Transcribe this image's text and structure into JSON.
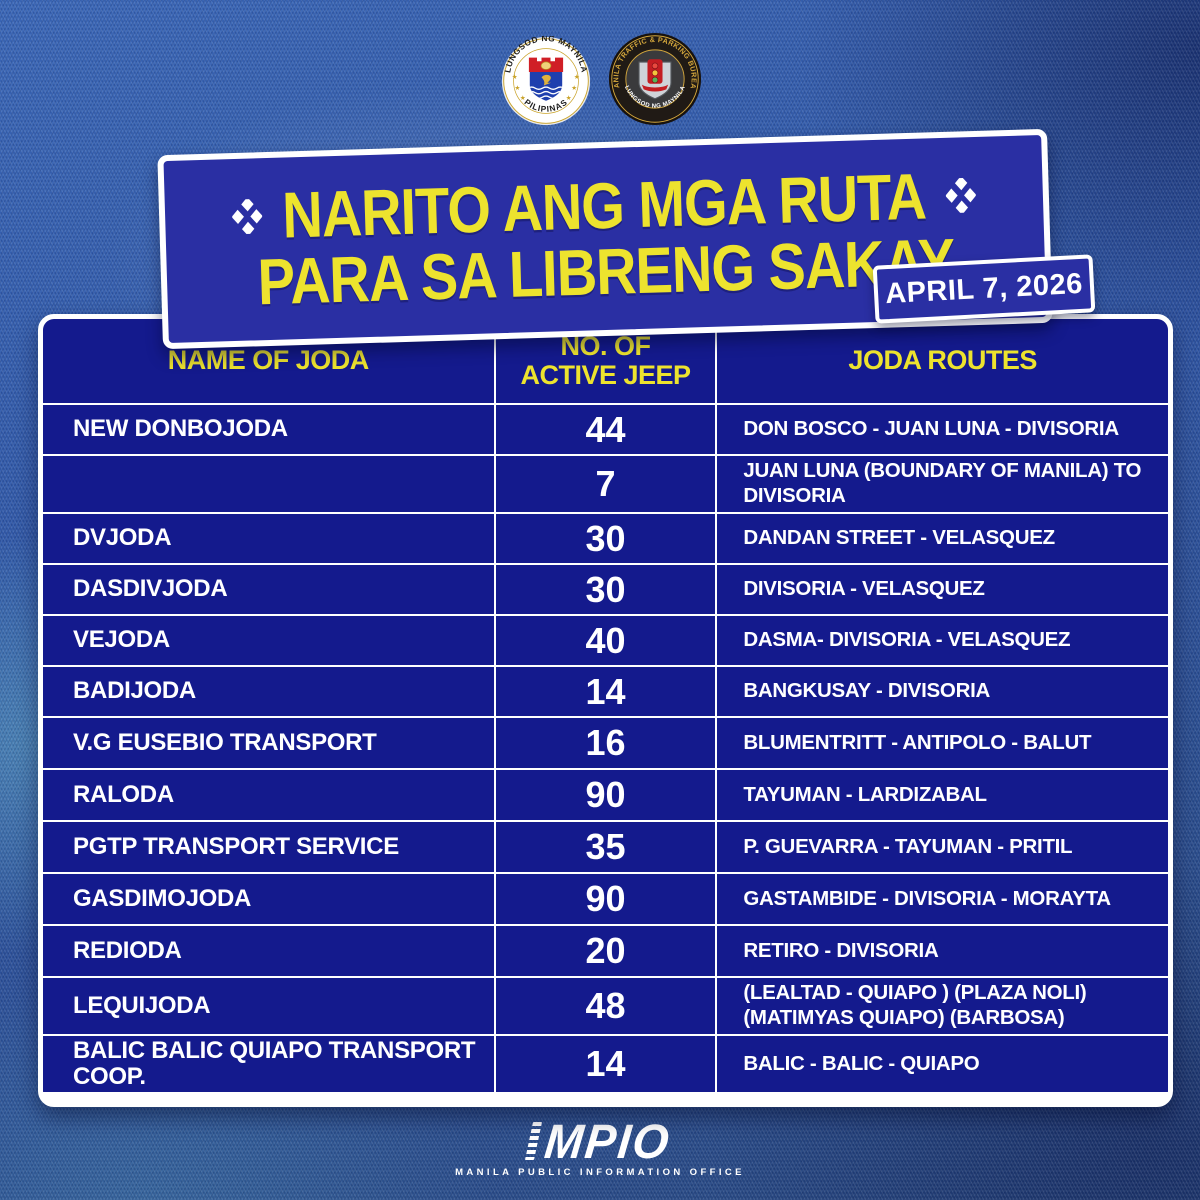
{
  "colors": {
    "background": "#2E55A4",
    "panel_blue": "#2A2FA3",
    "table_blue": "#141A8D",
    "accent_yellow": "#EDE32E",
    "text_white": "#FFFFFF",
    "seal_gold": "#C9A227"
  },
  "header": {
    "manila_seal": {
      "arc_top": "LUNGSOD NG MAYNILA",
      "arc_bottom": "PILIPINAS"
    },
    "mtpb_seal": {
      "arc_top": "MANILA TRAFFIC & PARKING BUREAU",
      "arc_bottom": "LUNGSOD NG MAYNILA"
    }
  },
  "banner": {
    "title_line1": "NARITO ANG MGA RUTA",
    "title_line2": "PARA SA LIBRENG SAKAY",
    "date": "APRIL 7, 2026"
  },
  "table": {
    "columns": [
      "NAME OF JODA",
      "NO. OF\nACTIVE JEEP",
      "JODA ROUTES"
    ],
    "rows": [
      {
        "name": "NEW DONBOJODA",
        "jeeps": "44",
        "route": "DON BOSCO - JUAN LUNA - DIVISORIA"
      },
      {
        "name": "",
        "jeeps": "7",
        "route": "JUAN LUNA (BOUNDARY OF MANILA) TO DIVISORIA"
      },
      {
        "name": "DVJODA",
        "jeeps": "30",
        "route": "DANDAN STREET - VELASQUEZ"
      },
      {
        "name": "DASDIVJODA",
        "jeeps": "30",
        "route": "DIVISORIA - VELASQUEZ"
      },
      {
        "name": "VEJODA",
        "jeeps": "40",
        "route": "DASMA- DIVISORIA - VELASQUEZ"
      },
      {
        "name": "BADIJODA",
        "jeeps": "14",
        "route": "BANGKUSAY - DIVISORIA"
      },
      {
        "name": "V.G EUSEBIO TRANSPORT",
        "jeeps": "16",
        "route": "BLUMENTRITT - ANTIPOLO - BALUT"
      },
      {
        "name": "RALODA",
        "jeeps": "90",
        "route": "TAYUMAN - LARDIZABAL"
      },
      {
        "name": "PGTP TRANSPORT SERVICE",
        "jeeps": "35",
        "route": "P. GUEVARRA - TAYUMAN - PRITIL"
      },
      {
        "name": "GASDIMOJODA",
        "jeeps": "90",
        "route": "GASTAMBIDE - DIVISORIA - MORAYTA"
      },
      {
        "name": "REDIODA",
        "jeeps": "20",
        "route": "RETIRO - DIVISORIA"
      },
      {
        "name": "LEQUIJODA",
        "jeeps": "48",
        "route": "(LEALTAD - QUIAPO ) (PLAZA NOLI) (MATIMYAS QUIAPO) (BARBOSA)"
      },
      {
        "name": "BALIC BALIC QUIAPO TRANSPORT COOP.",
        "jeeps": "14",
        "route": "BALIC - BALIC - QUIAPO"
      }
    ]
  },
  "footer": {
    "brand": "MPIO",
    "caption": "MANILA PUBLIC INFORMATION OFFICE"
  }
}
